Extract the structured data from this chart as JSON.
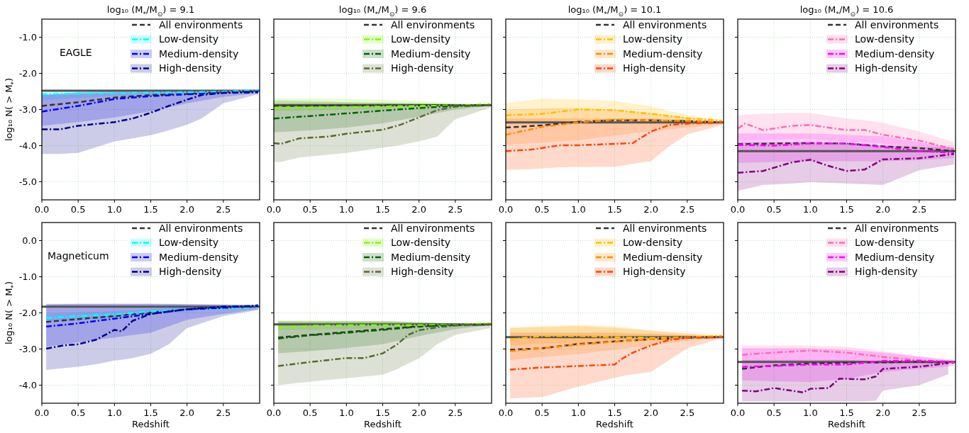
{
  "chart_data": [
    {
      "type": "line",
      "title": "log₁₀ (M$_{*}$/M$_{⊙}$) = 9.1",
      "ylabel": "log₁₀ N( > M$_{*}$)",
      "annotations": [
        "EAGLE"
      ],
      "xlim": [
        0,
        3
      ],
      "xticks": [
        {
          "value": 0,
          "label": "0.0"
        },
        {
          "value": 0.5,
          "label": "0.5"
        },
        {
          "value": 1,
          "label": "1.0"
        },
        {
          "value": 1.5,
          "label": "1.5"
        },
        {
          "value": 2,
          "label": "2.0"
        },
        {
          "value": 2.5,
          "label": "2.5"
        }
      ],
      "ylim": [
        -5.5,
        -0.5
      ],
      "yticks": [
        {
          "value": -1,
          "label": "-1.0"
        },
        {
          "value": -2,
          "label": "-2.0"
        },
        {
          "value": -3,
          "label": "-3.0"
        },
        {
          "value": -4,
          "label": "-4.0"
        },
        {
          "value": -5,
          "label": "-5.0"
        }
      ],
      "grid": true,
      "legend": "top right",
      "ref_lines": [
        {
          "axis": "y",
          "value": -2.48,
          "color": "#555555"
        }
      ],
      "series": [
        {
          "name": "All environments",
          "color": "#333333",
          "line_style": "dashed",
          "x": [
            0,
            0.5,
            1,
            1.5,
            2,
            2.5,
            2.98
          ],
          "values": [
            -2.9,
            -2.8,
            -2.67,
            -2.6,
            -2.57,
            -2.52,
            -2.5
          ]
        },
        {
          "name": "Low-density",
          "color": "#00ffff",
          "line_style": "dashdot",
          "x": [
            0,
            0.5,
            1,
            1.5,
            2,
            2.5,
            2.98
          ],
          "values": [
            -2.58,
            -2.56,
            -2.55,
            -2.53,
            -2.52,
            -2.51,
            -2.46
          ],
          "lower": [
            -2.75,
            -2.68,
            -2.62,
            -2.58,
            -2.55,
            -2.53,
            -2.52
          ],
          "upper": [
            -2.45,
            -2.45,
            -2.45,
            -2.45,
            -2.45,
            -2.46,
            -2.47
          ]
        },
        {
          "name": "Medium-density",
          "color": "#0000ff",
          "line_style": "dashdot",
          "x": [
            0,
            0.5,
            1,
            1.5,
            2,
            2.5,
            2.98
          ],
          "values": [
            -3.06,
            -2.9,
            -2.71,
            -2.63,
            -2.58,
            -2.54,
            -2.53
          ],
          "lower": [
            -3.45,
            -3.35,
            -3.22,
            -3.05,
            -2.83,
            -2.65,
            -2.55
          ],
          "upper": [
            -2.6,
            -2.52,
            -2.5,
            -2.48,
            -2.47,
            -2.47,
            -2.47
          ]
        },
        {
          "name": "High-density",
          "color": "#00008b",
          "line_style": "dashdot",
          "x": [
            0,
            0.25,
            0.5,
            1,
            1.25,
            1.5,
            1.75,
            2,
            2.2,
            2.5,
            2.98
          ],
          "values": [
            -3.55,
            -3.55,
            -3.45,
            -3.35,
            -3.25,
            -3.09,
            -2.9,
            -2.73,
            -2.6,
            -2.54,
            -2.5
          ],
          "lower": [
            -4.23,
            -4.23,
            -4.2,
            -3.88,
            -3.8,
            -3.71,
            -3.58,
            -3.42,
            -3.25,
            -2.83,
            -2.58
          ],
          "upper": [
            -2.6,
            -2.58,
            -2.56,
            -2.53,
            -2.52,
            -2.51,
            -2.5,
            -2.5,
            -2.5,
            -2.49,
            -2.48
          ]
        }
      ]
    },
    {
      "type": "line",
      "title": "log₁₀ (M$_{*}$/M$_{⊙}$) = 9.6",
      "tick_labels": "x",
      "xlim": [
        0,
        3
      ],
      "xticks": [
        {
          "value": 0,
          "label": "0.0"
        },
        {
          "value": 0.5,
          "label": "0.5"
        },
        {
          "value": 1,
          "label": "1.0"
        },
        {
          "value": 1.5,
          "label": "1.5"
        },
        {
          "value": 2,
          "label": "2.0"
        },
        {
          "value": 2.5,
          "label": "2.5"
        }
      ],
      "ylim": [
        -5.5,
        -0.5
      ],
      "yticks": [
        {
          "value": -1,
          "label": null
        },
        {
          "value": -2,
          "label": null
        },
        {
          "value": -3,
          "label": null
        },
        {
          "value": -4,
          "label": null
        },
        {
          "value": -5,
          "label": null
        }
      ],
      "grid": true,
      "legend": "top right",
      "ref_lines": [
        {
          "axis": "y",
          "value": -2.88,
          "color": "#555555"
        }
      ],
      "series": [
        {
          "name": "All environments",
          "color": "#333333",
          "line_style": "dashed",
          "x": [
            0,
            0.5,
            1,
            1.5,
            2,
            2.5,
            2.98
          ],
          "values": [
            -2.9,
            -2.9,
            -2.89,
            -2.89,
            -2.88,
            -2.88,
            -2.88
          ]
        },
        {
          "name": "Low-density",
          "color": "#7cfc00",
          "line_style": "dashdot",
          "x": [
            0,
            0.5,
            1,
            1.5,
            2,
            2.5,
            2.98
          ],
          "values": [
            -2.95,
            -2.94,
            -2.93,
            -2.92,
            -2.9,
            -2.89,
            -2.85
          ],
          "lower": [
            -3.05,
            -3.02,
            -3.0,
            -2.97,
            -2.94,
            -2.91,
            -2.89
          ],
          "upper": [
            -2.7,
            -2.7,
            -2.71,
            -2.73,
            -2.77,
            -2.82,
            -2.86
          ]
        },
        {
          "name": "Medium-density",
          "color": "#006400",
          "line_style": "dashdot",
          "x": [
            0,
            0.5,
            1,
            1.5,
            2,
            2.5,
            2.98
          ],
          "values": [
            -3.25,
            -3.18,
            -3.11,
            -3.03,
            -2.96,
            -2.9,
            -2.88
          ],
          "lower": [
            -3.63,
            -3.58,
            -3.5,
            -3.38,
            -3.2,
            -3.0,
            -2.9
          ],
          "upper": [
            -2.83,
            -2.82,
            -2.82,
            -2.82,
            -2.83,
            -2.85,
            -2.86
          ]
        },
        {
          "name": "High-density",
          "color": "#556b2f",
          "line_style": "dashdot",
          "x": [
            0,
            0.1,
            0.35,
            0.75,
            1,
            1.5,
            1.75,
            2,
            2.25,
            2.5,
            2.98
          ],
          "values": [
            -3.93,
            -3.95,
            -3.8,
            -3.75,
            -3.67,
            -3.56,
            -3.42,
            -3.22,
            -3.02,
            -2.92,
            -2.88
          ],
          "lower": [
            -4.45,
            -4.45,
            -4.33,
            -4.25,
            -4.2,
            -4.06,
            -3.98,
            -3.88,
            -3.75,
            -3.27,
            -2.95
          ],
          "upper": [
            -2.75,
            -2.75,
            -2.76,
            -2.78,
            -2.8,
            -2.82,
            -2.83,
            -2.84,
            -2.85,
            -2.86,
            -2.87
          ]
        }
      ]
    },
    {
      "type": "line",
      "title": "log₁₀ (M$_{*}$/M$_{⊙}$) = 10.1",
      "tick_labels": "x",
      "xlim": [
        0,
        3
      ],
      "xticks": [
        {
          "value": 0,
          "label": "0.0"
        },
        {
          "value": 0.5,
          "label": "0.5"
        },
        {
          "value": 1,
          "label": "1.0"
        },
        {
          "value": 1.5,
          "label": "1.5"
        },
        {
          "value": 2,
          "label": "2.0"
        },
        {
          "value": 2.5,
          "label": "2.5"
        }
      ],
      "ylim": [
        -5.5,
        -0.5
      ],
      "yticks": [
        {
          "value": -1,
          "label": null
        },
        {
          "value": -2,
          "label": null
        },
        {
          "value": -3,
          "label": null
        },
        {
          "value": -4,
          "label": null
        },
        {
          "value": -5,
          "label": null
        }
      ],
      "grid": true,
      "legend": "top right",
      "ref_lines": [
        {
          "axis": "y",
          "value": -3.36,
          "color": "#555555"
        }
      ],
      "series": [
        {
          "name": "All environments",
          "color": "#333333",
          "line_style": "dashed",
          "x": [
            0,
            0.5,
            1,
            1.5,
            2,
            2.5,
            2.98
          ],
          "values": [
            -3.5,
            -3.44,
            -3.34,
            -3.3,
            -3.3,
            -3.32,
            -3.36
          ]
        },
        {
          "name": "Low-density",
          "color": "#ffc000",
          "line_style": "dashdot",
          "x": [
            0,
            0.5,
            1,
            1.5,
            2,
            2.5,
            2.98
          ],
          "values": [
            -3.16,
            -3.12,
            -3.0,
            -3.02,
            -3.12,
            -3.24,
            -3.31
          ],
          "lower": [
            -3.4,
            -3.35,
            -3.3,
            -3.28,
            -3.3,
            -3.33,
            -3.37
          ],
          "upper": [
            -2.83,
            -2.7,
            -2.72,
            -2.76,
            -2.91,
            -3.16,
            -3.28
          ]
        },
        {
          "name": "Medium-density",
          "color": "#ff8c00",
          "line_style": "dashdot",
          "x": [
            0,
            0.5,
            1,
            1.5,
            2,
            2.5,
            2.98
          ],
          "values": [
            -3.7,
            -3.48,
            -3.36,
            -3.28,
            -3.3,
            -3.32,
            -3.36
          ],
          "lower": [
            -3.97,
            -3.92,
            -3.85,
            -3.72,
            -3.6,
            -3.5,
            -3.4
          ],
          "upper": [
            -3.0,
            -2.97,
            -2.95,
            -3.0,
            -3.1,
            -3.22,
            -3.33
          ]
        },
        {
          "name": "High-density",
          "color": "#ff4500",
          "line_style": "dashdot",
          "x": [
            0,
            0.35,
            0.75,
            1,
            1.5,
            1.75,
            2,
            2.25,
            2.5,
            2.98
          ],
          "values": [
            -4.15,
            -4.11,
            -3.99,
            -3.99,
            -3.95,
            -3.93,
            -3.61,
            -3.43,
            -3.39,
            -3.36
          ],
          "lower": [
            -4.67,
            -4.65,
            -4.6,
            -4.59,
            -4.59,
            -4.5,
            -4.43,
            -4.02,
            -3.69,
            -3.43
          ],
          "upper": [
            -3.25,
            -3.25,
            -3.25,
            -3.25,
            -3.25,
            -3.25,
            -3.25,
            -3.28,
            -3.3,
            -3.33
          ]
        }
      ]
    },
    {
      "type": "line",
      "title": "log₁₀ (M$_{*}$/M$_{⊙}$) = 10.6",
      "tick_labels": "x",
      "xlim": [
        0,
        3
      ],
      "xticks": [
        {
          "value": 0,
          "label": "0.0"
        },
        {
          "value": 0.5,
          "label": "0.5"
        },
        {
          "value": 1,
          "label": "1.0"
        },
        {
          "value": 1.5,
          "label": "1.5"
        },
        {
          "value": 2,
          "label": "2.0"
        },
        {
          "value": 2.5,
          "label": "2.5"
        }
      ],
      "ylim": [
        -5.5,
        -0.5
      ],
      "yticks": [
        {
          "value": -1,
          "label": null
        },
        {
          "value": -2,
          "label": null
        },
        {
          "value": -3,
          "label": null
        },
        {
          "value": -4,
          "label": null
        },
        {
          "value": -5,
          "label": null
        }
      ],
      "grid": true,
      "legend": "top right",
      "ref_lines": [
        {
          "axis": "y",
          "value": -4.15,
          "color": "#555555"
        }
      ],
      "series": [
        {
          "name": "All environments",
          "color": "#333333",
          "line_style": "dashed",
          "x": [
            0,
            0.5,
            1,
            1.5,
            2,
            2.5,
            2.98
          ],
          "values": [
            -3.96,
            -3.94,
            -3.93,
            -3.94,
            -4.02,
            -4.07,
            -4.15
          ]
        },
        {
          "name": "Low-density",
          "color": "#ff69b4",
          "line_style": "dashdot",
          "x": [
            0,
            0.1,
            0.35,
            0.75,
            1,
            1.5,
            1.75,
            2,
            2.5,
            2.98
          ],
          "values": [
            -3.53,
            -3.39,
            -3.57,
            -3.45,
            -3.43,
            -3.57,
            -3.57,
            -3.7,
            -3.86,
            -4.1
          ],
          "lower": [
            -3.86,
            -3.85,
            -3.85,
            -3.83,
            -3.82,
            -3.88,
            -3.9,
            -3.94,
            -4.05,
            -4.23
          ],
          "upper": [
            -3.16,
            -3.14,
            -3.12,
            -3.1,
            -3.1,
            -3.25,
            -3.3,
            -3.37,
            -3.61,
            -3.9
          ]
        },
        {
          "name": "Medium-density",
          "color": "#ff00ff",
          "line_style": "dashdot",
          "x": [
            0,
            0.5,
            1,
            1.5,
            2,
            2.5,
            2.98
          ],
          "values": [
            -3.98,
            -4.0,
            -3.94,
            -3.94,
            -4.04,
            -4.15,
            -4.2
          ],
          "lower": [
            -4.48,
            -4.45,
            -4.43,
            -4.43,
            -4.43,
            -4.4,
            -4.35
          ],
          "upper": [
            -3.66,
            -3.66,
            -3.66,
            -3.7,
            -3.74,
            -3.9,
            -4.07
          ]
        },
        {
          "name": "High-density",
          "color": "#800080",
          "line_style": "dashdot",
          "x": [
            0,
            0.35,
            0.75,
            1,
            1.25,
            1.5,
            1.75,
            2,
            2.5,
            2.98
          ],
          "values": [
            -4.75,
            -4.7,
            -4.46,
            -4.39,
            -4.56,
            -4.7,
            -4.66,
            -4.38,
            -4.35,
            -4.23
          ],
          "lower": [
            -5.25,
            -5.09,
            -5.05,
            -5.01,
            -5.03,
            -5.05,
            -5.07,
            -5.09,
            -4.68,
            -4.52
          ],
          "upper": [
            -3.9,
            -3.9,
            -3.9,
            -3.9,
            -3.92,
            -3.95,
            -3.97,
            -4.0,
            -4.03,
            -4.05
          ]
        }
      ]
    },
    {
      "type": "line",
      "xlabel": "Redshift",
      "ylabel": "log₁₀ N( > M$_{*}$)",
      "annotations": [
        "Magneticum"
      ],
      "xlim": [
        0,
        3
      ],
      "xticks": [
        {
          "value": 0,
          "label": "0.0"
        },
        {
          "value": 0.5,
          "label": "0.5"
        },
        {
          "value": 1,
          "label": "1.0"
        },
        {
          "value": 1.5,
          "label": "1.5"
        },
        {
          "value": 2,
          "label": "2.0"
        },
        {
          "value": 2.5,
          "label": "2.5"
        }
      ],
      "ylim": [
        -4.5,
        0.5
      ],
      "yticks": [
        {
          "value": 0,
          "label": "0.0"
        },
        {
          "value": -1,
          "label": "-1.0"
        },
        {
          "value": -2,
          "label": "-2.0"
        },
        {
          "value": -3,
          "label": "-3.0"
        },
        {
          "value": -4,
          "label": "-4.0"
        }
      ],
      "grid": true,
      "legend": "top right",
      "ref_lines": [
        {
          "axis": "y",
          "value": -1.83,
          "color": "#555555"
        }
      ],
      "series": [
        {
          "name": "All environments",
          "color": "#333333",
          "line_style": "dashed",
          "x": [
            0.06,
            0.5,
            1,
            1.5,
            2,
            2.5,
            2.98
          ],
          "values": [
            -2.25,
            -2.17,
            -2.09,
            -1.99,
            -1.9,
            -1.86,
            -1.83
          ]
        },
        {
          "name": "Low-density",
          "color": "#00ffff",
          "line_style": "dashdot",
          "x": [
            0.06,
            0.5,
            1,
            1.5,
            2,
            2.5,
            2.98
          ],
          "values": [
            -2.14,
            -2.09,
            -2.04,
            -1.96,
            -1.9,
            -1.88,
            -1.85
          ],
          "lower": [
            -2.25,
            -2.2,
            -2.15,
            -2.05,
            -1.95,
            -1.9,
            -1.87
          ],
          "upper": [
            -2.02,
            -1.98,
            -1.95,
            -1.9,
            -1.85,
            -1.83,
            -1.82
          ]
        },
        {
          "name": "Medium-density",
          "color": "#0000ff",
          "line_style": "dashdot",
          "x": [
            0.06,
            0.5,
            1,
            1.5,
            2,
            2.5,
            2.98
          ],
          "values": [
            -2.38,
            -2.29,
            -2.16,
            -2.03,
            -1.9,
            -1.86,
            -1.79
          ],
          "lower": [
            -2.94,
            -2.81,
            -2.68,
            -2.55,
            -2.19,
            -2.03,
            -1.9
          ],
          "upper": [
            -1.77,
            -1.75,
            -1.75,
            -1.75,
            -1.76,
            -1.77,
            -1.78
          ]
        },
        {
          "name": "High-density",
          "color": "#00008b",
          "line_style": "dashdot",
          "x": [
            0.06,
            0.3,
            0.5,
            0.75,
            1,
            1.1,
            1.25,
            1.5,
            1.75,
            2,
            2.5,
            2.98
          ],
          "values": [
            -2.99,
            -2.9,
            -2.87,
            -2.74,
            -2.47,
            -2.51,
            -2.22,
            -2.03,
            -1.96,
            -1.9,
            -1.83,
            -1.82
          ],
          "lower": [
            -3.58,
            -3.53,
            -3.49,
            -3.42,
            -3.32,
            -3.3,
            -3.25,
            -3.13,
            -2.87,
            -2.42,
            -2.09,
            -1.92
          ],
          "upper": [
            -1.75,
            -1.75,
            -1.75,
            -1.75,
            -1.75,
            -1.75,
            -1.75,
            -1.75,
            -1.75,
            -1.76,
            -1.77,
            -1.78
          ]
        }
      ]
    },
    {
      "type": "line",
      "xlabel": "Redshift",
      "tick_labels": "x",
      "xlim": [
        0,
        3
      ],
      "xticks": [
        {
          "value": 0,
          "label": "0.0"
        },
        {
          "value": 0.5,
          "label": "0.5"
        },
        {
          "value": 1,
          "label": "1.0"
        },
        {
          "value": 1.5,
          "label": "1.5"
        },
        {
          "value": 2,
          "label": "2.0"
        },
        {
          "value": 2.5,
          "label": "2.5"
        }
      ],
      "ylim": [
        -4.5,
        0.5
      ],
      "yticks": [
        {
          "value": 0,
          "label": null
        },
        {
          "value": -1,
          "label": null
        },
        {
          "value": -2,
          "label": null
        },
        {
          "value": -3,
          "label": null
        },
        {
          "value": -4,
          "label": null
        }
      ],
      "grid": true,
      "legend": "top right",
      "ref_lines": [
        {
          "axis": "y",
          "value": -2.32,
          "color": "#555555"
        }
      ],
      "series": [
        {
          "name": "All environments",
          "color": "#333333",
          "line_style": "dashed",
          "x": [
            0.06,
            0.5,
            1,
            1.5,
            2,
            2.5,
            2.98
          ],
          "values": [
            -2.68,
            -2.61,
            -2.53,
            -2.45,
            -2.37,
            -2.34,
            -2.32
          ]
        },
        {
          "name": "Low-density",
          "color": "#7cfc00",
          "line_style": "dashdot",
          "x": [
            0.06,
            0.5,
            1,
            1.5,
            2,
            2.5,
            2.98
          ],
          "values": [
            -2.4,
            -2.36,
            -2.34,
            -2.34,
            -2.34,
            -2.33,
            -2.29
          ],
          "lower": [
            -2.48,
            -2.46,
            -2.45,
            -2.42,
            -2.39,
            -2.36,
            -2.34
          ],
          "upper": [
            -2.21,
            -2.22,
            -2.22,
            -2.23,
            -2.25,
            -2.28,
            -2.27
          ]
        },
        {
          "name": "Medium-density",
          "color": "#006400",
          "line_style": "dashdot",
          "x": [
            0.06,
            0.5,
            1,
            1.5,
            2,
            2.5,
            2.98
          ],
          "values": [
            -2.71,
            -2.62,
            -2.55,
            -2.47,
            -2.38,
            -2.34,
            -2.32
          ],
          "lower": [
            -3.12,
            -3.06,
            -2.97,
            -2.87,
            -2.64,
            -2.45,
            -2.34
          ],
          "upper": [
            -2.25,
            -2.25,
            -2.25,
            -2.25,
            -2.27,
            -2.29,
            -2.31
          ]
        },
        {
          "name": "High-density",
          "color": "#556b2f",
          "line_style": "dashdot",
          "x": [
            0.06,
            0.5,
            1,
            1.25,
            1.5,
            1.7,
            1.85,
            2,
            2.25,
            2.5,
            2.98
          ],
          "values": [
            -3.47,
            -3.36,
            -3.25,
            -3.25,
            -3.12,
            -2.87,
            -2.61,
            -2.48,
            -2.4,
            -2.35,
            -2.32
          ],
          "lower": [
            -4.0,
            -3.9,
            -3.81,
            -3.76,
            -3.71,
            -3.56,
            -3.4,
            -3.26,
            -2.87,
            -2.61,
            -2.42
          ],
          "upper": [
            -2.22,
            -2.22,
            -2.22,
            -2.22,
            -2.22,
            -2.23,
            -2.25,
            -2.26,
            -2.28,
            -2.3,
            -2.31
          ]
        }
      ]
    },
    {
      "type": "line",
      "xlabel": "Redshift",
      "tick_labels": "x",
      "xlim": [
        0,
        3
      ],
      "xticks": [
        {
          "value": 0,
          "label": "0.0"
        },
        {
          "value": 0.5,
          "label": "0.5"
        },
        {
          "value": 1,
          "label": "1.0"
        },
        {
          "value": 1.5,
          "label": "1.5"
        },
        {
          "value": 2,
          "label": "2.0"
        },
        {
          "value": 2.5,
          "label": "2.5"
        }
      ],
      "ylim": [
        -4.5,
        0.5
      ],
      "yticks": [
        {
          "value": 0,
          "label": null
        },
        {
          "value": -1,
          "label": null
        },
        {
          "value": -2,
          "label": null
        },
        {
          "value": -3,
          "label": null
        },
        {
          "value": -4,
          "label": null
        }
      ],
      "grid": true,
      "legend": "top right",
      "ref_lines": [
        {
          "axis": "y",
          "value": -2.67,
          "color": "#555555"
        }
      ],
      "series": [
        {
          "name": "All environments",
          "color": "#333333",
          "line_style": "dashed",
          "x": [
            0.06,
            0.5,
            1,
            1.5,
            2,
            2.5,
            2.98
          ],
          "values": [
            -3.02,
            -2.98,
            -2.86,
            -2.79,
            -2.73,
            -2.69,
            -2.67
          ]
        },
        {
          "name": "Low-density",
          "color": "#ffc000",
          "line_style": "dashdot",
          "x": [
            0.06,
            0.5,
            1,
            1.5,
            2,
            2.5,
            2.98
          ],
          "values": [
            -2.73,
            -2.64,
            -2.64,
            -2.67,
            -2.69,
            -2.68,
            -2.63
          ],
          "lower": [
            -2.9,
            -2.85,
            -2.85,
            -2.8,
            -2.75,
            -2.7,
            -2.68
          ],
          "upper": [
            -2.41,
            -2.37,
            -2.33,
            -2.37,
            -2.49,
            -2.57,
            -2.61
          ]
        },
        {
          "name": "Medium-density",
          "color": "#ff8c00",
          "line_style": "dashdot",
          "x": [
            0.06,
            0.5,
            1,
            1.5,
            2,
            2.5,
            2.98
          ],
          "values": [
            -3.06,
            -2.98,
            -2.88,
            -2.8,
            -2.73,
            -2.69,
            -2.67
          ],
          "lower": [
            -3.31,
            -3.22,
            -3.14,
            -3.02,
            -2.9,
            -2.78,
            -2.68
          ],
          "upper": [
            -2.41,
            -2.39,
            -2.37,
            -2.41,
            -2.49,
            -2.57,
            -2.65
          ]
        },
        {
          "name": "High-density",
          "color": "#ff4500",
          "line_style": "dashdot",
          "x": [
            0.06,
            0.5,
            1,
            1.5,
            1.6,
            1.75,
            2,
            2.25,
            2.5,
            2.98
          ],
          "values": [
            -3.57,
            -3.51,
            -3.47,
            -3.43,
            -3.27,
            -3.1,
            -2.9,
            -2.75,
            -2.69,
            -2.67
          ],
          "lower": [
            -4.37,
            -4.33,
            -4.04,
            -3.8,
            -3.75,
            -3.7,
            -3.63,
            -3.31,
            -2.98,
            -2.7
          ],
          "upper": [
            -2.55,
            -2.55,
            -2.55,
            -2.55,
            -2.56,
            -2.57,
            -2.58,
            -2.6,
            -2.62,
            -2.65
          ]
        }
      ]
    },
    {
      "type": "line",
      "xlabel": "Redshift",
      "tick_labels": "x",
      "xlim": [
        0,
        3
      ],
      "xticks": [
        {
          "value": 0,
          "label": "0.0"
        },
        {
          "value": 0.5,
          "label": "0.5"
        },
        {
          "value": 1,
          "label": "1.0"
        },
        {
          "value": 1.5,
          "label": "1.5"
        },
        {
          "value": 2,
          "label": "2.0"
        },
        {
          "value": 2.5,
          "label": "2.5"
        }
      ],
      "ylim": [
        -4.5,
        0.5
      ],
      "yticks": [
        {
          "value": 0,
          "label": null
        },
        {
          "value": -1,
          "label": null
        },
        {
          "value": -2,
          "label": null
        },
        {
          "value": -3,
          "label": null
        },
        {
          "value": -4,
          "label": null
        }
      ],
      "grid": true,
      "legend": "top right",
      "ref_lines": [
        {
          "axis": "y",
          "value": -3.36,
          "color": "#555555"
        }
      ],
      "series": [
        {
          "name": "All environments",
          "color": "#333333",
          "line_style": "dashed",
          "x": [
            0.06,
            0.5,
            1,
            1.5,
            2,
            2.5,
            2.98
          ],
          "values": [
            -3.55,
            -3.45,
            -3.4,
            -3.38,
            -3.37,
            -3.35,
            -3.38
          ]
        },
        {
          "name": "Low-density",
          "color": "#ff69b4",
          "line_style": "dashdot",
          "x": [
            0.06,
            0.5,
            1,
            1.5,
            2,
            2.5,
            2.98
          ],
          "values": [
            -3.16,
            -3.1,
            -3.04,
            -3.1,
            -3.22,
            -3.31,
            -3.37
          ],
          "lower": [
            -3.39,
            -3.35,
            -3.31,
            -3.35,
            -3.39,
            -3.4,
            -3.41
          ],
          "upper": [
            -2.9,
            -2.9,
            -2.9,
            -2.94,
            -3.06,
            -3.22,
            -3.33
          ]
        },
        {
          "name": "Medium-density",
          "color": "#ff00ff",
          "line_style": "dashdot",
          "x": [
            0.06,
            0.5,
            1,
            1.5,
            2,
            2.5,
            2.98
          ],
          "values": [
            -3.49,
            -3.47,
            -3.43,
            -3.43,
            -3.33,
            -3.33,
            -3.35
          ],
          "lower": [
            -3.87,
            -3.89,
            -3.91,
            -3.83,
            -3.63,
            -3.55,
            -3.47
          ],
          "upper": [
            -2.98,
            -2.98,
            -2.98,
            -3.02,
            -3.1,
            -3.2,
            -3.31
          ]
        },
        {
          "name": "High-density",
          "color": "#800080",
          "line_style": "dashdot",
          "x": [
            0.06,
            0.25,
            0.5,
            0.9,
            1,
            1.25,
            1.4,
            1.75,
            1.9,
            2,
            2.5,
            2.9
          ],
          "values": [
            -4.15,
            -4.17,
            -4.08,
            -4.2,
            -4.1,
            -4.08,
            -3.82,
            -3.84,
            -3.76,
            -3.55,
            -3.49,
            -3.39
          ],
          "lower": [
            -4.45,
            -4.45,
            -4.45,
            -4.45,
            -4.45,
            -4.45,
            -4.45,
            -4.45,
            -4.43,
            -4.15,
            -4.0,
            -3.7
          ],
          "upper": [
            -3.3,
            -3.3,
            -3.3,
            -3.3,
            -3.3,
            -3.3,
            -3.3,
            -3.32,
            -3.33,
            -3.34,
            -3.36,
            -3.38
          ]
        }
      ]
    }
  ]
}
